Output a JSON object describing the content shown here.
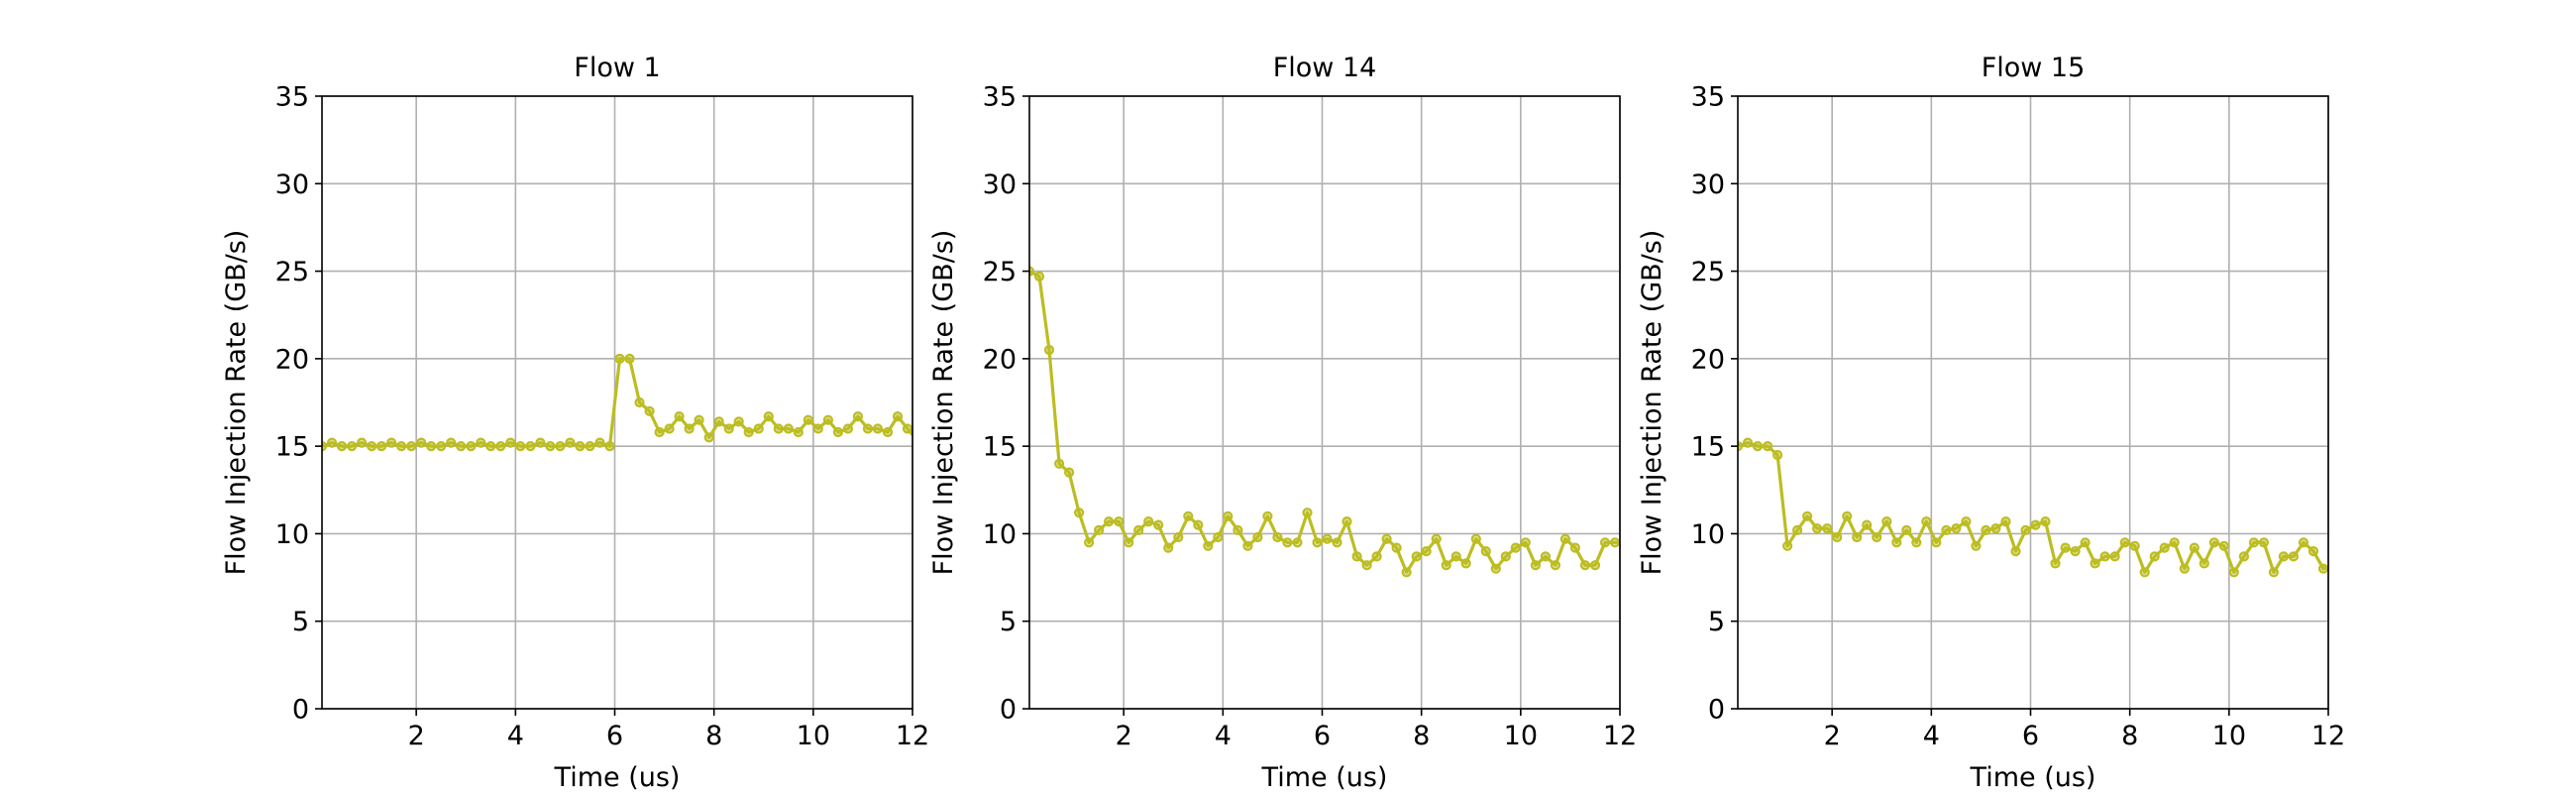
{
  "chart_data": [
    {
      "type": "line",
      "title": "Flow 1",
      "xlabel": "Time (us)",
      "ylabel": "Flow Injection Rate (GB/s)",
      "xlim": [
        0.1,
        12
      ],
      "ylim": [
        0,
        35
      ],
      "xticks": [
        2,
        4,
        6,
        8,
        10,
        12
      ],
      "yticks": [
        0,
        5,
        10,
        15,
        20,
        25,
        30,
        35
      ],
      "grid": true,
      "series": [
        {
          "color": "#bcbd22",
          "x": [
            0.1,
            0.3,
            0.5,
            0.7,
            0.9,
            1.1,
            1.3,
            1.5,
            1.7,
            1.9,
            2.1,
            2.3,
            2.5,
            2.7,
            2.9,
            3.1,
            3.3,
            3.5,
            3.7,
            3.9,
            4.1,
            4.3,
            4.5,
            4.7,
            4.9,
            5.1,
            5.3,
            5.5,
            5.7,
            5.9,
            6.1,
            6.3,
            6.5,
            6.7,
            6.9,
            7.1,
            7.3,
            7.5,
            7.7,
            7.9,
            8.1,
            8.3,
            8.5,
            8.7,
            8.9,
            9.1,
            9.3,
            9.5,
            9.7,
            9.9,
            10.1,
            10.3,
            10.5,
            10.7,
            10.9,
            11.1,
            11.3,
            11.5,
            11.7,
            11.9,
            12.1
          ],
          "y": [
            15.0,
            15.2,
            15.0,
            15.0,
            15.2,
            15.0,
            15.0,
            15.2,
            15.0,
            15.0,
            15.2,
            15.0,
            15.0,
            15.2,
            15.0,
            15.0,
            15.2,
            15.0,
            15.0,
            15.2,
            15.0,
            15.0,
            15.2,
            15.0,
            15.0,
            15.2,
            15.0,
            15.0,
            15.2,
            15.0,
            20.0,
            20.0,
            17.5,
            17.0,
            15.8,
            16.0,
            16.7,
            16.0,
            16.5,
            15.5,
            16.4,
            16.0,
            16.4,
            15.8,
            16.0,
            16.7,
            16.0,
            16.0,
            15.8,
            16.5,
            16.0,
            16.5,
            15.8,
            16.0,
            16.7,
            16.0,
            16.0,
            15.8,
            16.7,
            16.0,
            15.3
          ]
        }
      ]
    },
    {
      "type": "line",
      "title": "Flow 14",
      "xlabel": "Time (us)",
      "ylabel": "Flow Injection Rate (GB/s)",
      "xlim": [
        0.1,
        12
      ],
      "ylim": [
        0,
        35
      ],
      "xticks": [
        2,
        4,
        6,
        8,
        10,
        12
      ],
      "yticks": [
        0,
        5,
        10,
        15,
        20,
        25,
        30,
        35
      ],
      "grid": true,
      "series": [
        {
          "color": "#bcbd22",
          "x": [
            0.1,
            0.3,
            0.5,
            0.7,
            0.9,
            1.1,
            1.3,
            1.5,
            1.7,
            1.9,
            2.1,
            2.3,
            2.5,
            2.7,
            2.9,
            3.1,
            3.3,
            3.5,
            3.7,
            3.9,
            4.1,
            4.3,
            4.5,
            4.7,
            4.9,
            5.1,
            5.3,
            5.5,
            5.7,
            5.9,
            6.1,
            6.3,
            6.5,
            6.7,
            6.9,
            7.1,
            7.3,
            7.5,
            7.7,
            7.9,
            8.1,
            8.3,
            8.5,
            8.7,
            8.9,
            9.1,
            9.3,
            9.5,
            9.7,
            9.9,
            10.1,
            10.3,
            10.5,
            10.7,
            10.9,
            11.1,
            11.3,
            11.5,
            11.7,
            11.9,
            12.1
          ],
          "y": [
            25.0,
            24.7,
            20.5,
            14.0,
            13.5,
            11.2,
            9.5,
            10.2,
            10.7,
            10.7,
            9.5,
            10.2,
            10.7,
            10.5,
            9.2,
            9.8,
            11.0,
            10.5,
            9.3,
            9.8,
            11.0,
            10.2,
            9.3,
            9.8,
            11.0,
            9.8,
            9.5,
            9.5,
            11.2,
            9.5,
            9.7,
            9.5,
            10.7,
            8.7,
            8.2,
            8.7,
            9.7,
            9.2,
            7.8,
            8.7,
            9.0,
            9.7,
            8.2,
            8.7,
            8.3,
            9.7,
            9.0,
            8.0,
            8.7,
            9.2,
            9.5,
            8.2,
            8.7,
            8.2,
            9.7,
            9.2,
            8.2,
            8.2,
            9.5,
            9.5,
            9.5
          ]
        }
      ]
    },
    {
      "type": "line",
      "title": "Flow 15",
      "xlabel": "Time (us)",
      "ylabel": "Flow Injection Rate (GB/s)",
      "xlim": [
        0.1,
        12
      ],
      "ylim": [
        0,
        35
      ],
      "xticks": [
        2,
        4,
        6,
        8,
        10,
        12
      ],
      "yticks": [
        0,
        5,
        10,
        15,
        20,
        25,
        30,
        35
      ],
      "grid": true,
      "series": [
        {
          "color": "#bcbd22",
          "x": [
            0.1,
            0.3,
            0.5,
            0.7,
            0.9,
            1.1,
            1.3,
            1.5,
            1.7,
            1.9,
            2.1,
            2.3,
            2.5,
            2.7,
            2.9,
            3.1,
            3.3,
            3.5,
            3.7,
            3.9,
            4.1,
            4.3,
            4.5,
            4.7,
            4.9,
            5.1,
            5.3,
            5.5,
            5.7,
            5.9,
            6.1,
            6.3,
            6.5,
            6.7,
            6.9,
            7.1,
            7.3,
            7.5,
            7.7,
            7.9,
            8.1,
            8.3,
            8.5,
            8.7,
            8.9,
            9.1,
            9.3,
            9.5,
            9.7,
            9.9,
            10.1,
            10.3,
            10.5,
            10.7,
            10.9,
            11.1,
            11.3,
            11.5,
            11.7,
            11.9,
            12.1
          ],
          "y": [
            15.0,
            15.2,
            15.0,
            15.0,
            14.5,
            9.3,
            10.2,
            11.0,
            10.3,
            10.3,
            9.8,
            11.0,
            9.8,
            10.5,
            9.8,
            10.7,
            9.5,
            10.2,
            9.5,
            10.7,
            9.5,
            10.2,
            10.3,
            10.7,
            9.3,
            10.2,
            10.3,
            10.7,
            9.0,
            10.2,
            10.5,
            10.7,
            8.3,
            9.2,
            9.0,
            9.5,
            8.3,
            8.7,
            8.7,
            9.5,
            9.3,
            7.8,
            8.7,
            9.2,
            9.5,
            8.0,
            9.2,
            8.3,
            9.5,
            9.3,
            7.8,
            8.7,
            9.5,
            9.5,
            7.8,
            8.7,
            8.7,
            9.5,
            9.0,
            8.0,
            8.2
          ]
        }
      ]
    }
  ]
}
